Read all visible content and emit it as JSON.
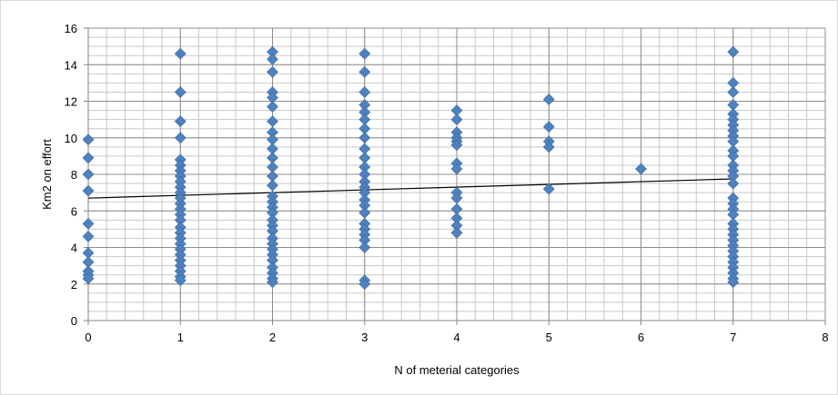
{
  "chart_data": {
    "type": "scatter",
    "title": "",
    "xlabel": "N of meterial categories",
    "ylabel": "Km2 on effort",
    "xlim": [
      0,
      8
    ],
    "ylim": [
      0,
      16
    ],
    "x_ticks": [
      0,
      1,
      2,
      3,
      4,
      5,
      6,
      7,
      8
    ],
    "y_ticks": [
      0,
      2,
      4,
      6,
      8,
      10,
      12,
      14,
      16
    ],
    "grid": "on (major and minor)",
    "legend": "none",
    "marker": "diamond",
    "marker_color": "#4f81bd",
    "trendline": {
      "type": "linear",
      "x": [
        0,
        7
      ],
      "y": [
        6.7,
        7.75
      ],
      "color": "#000000"
    },
    "series": [
      {
        "points": [
          [
            0,
            9.9
          ],
          [
            0,
            8.9
          ],
          [
            0,
            8.0
          ],
          [
            0,
            7.1
          ],
          [
            0,
            5.3
          ],
          [
            0,
            4.6
          ],
          [
            0,
            3.7
          ],
          [
            0,
            3.2
          ],
          [
            0,
            2.7
          ],
          [
            0,
            2.5
          ],
          [
            0,
            2.3
          ],
          [
            1,
            14.6
          ],
          [
            1,
            12.5
          ],
          [
            1,
            10.9
          ],
          [
            1,
            10.0
          ],
          [
            1,
            8.8
          ],
          [
            1,
            8.5
          ],
          [
            1,
            8.2
          ],
          [
            1,
            7.9
          ],
          [
            1,
            7.6
          ],
          [
            1,
            7.3
          ],
          [
            1,
            7.0
          ],
          [
            1,
            6.7
          ],
          [
            1,
            6.4
          ],
          [
            1,
            6.1
          ],
          [
            1,
            5.8
          ],
          [
            1,
            5.5
          ],
          [
            1,
            5.1
          ],
          [
            1,
            4.8
          ],
          [
            1,
            4.5
          ],
          [
            1,
            4.2
          ],
          [
            1,
            3.9
          ],
          [
            1,
            3.6
          ],
          [
            1,
            3.3
          ],
          [
            1,
            3.0
          ],
          [
            1,
            2.7
          ],
          [
            1,
            2.4
          ],
          [
            1,
            2.2
          ],
          [
            2,
            14.7
          ],
          [
            2,
            14.3
          ],
          [
            2,
            13.6
          ],
          [
            2,
            12.5
          ],
          [
            2,
            12.2
          ],
          [
            2,
            11.7
          ],
          [
            2,
            10.9
          ],
          [
            2,
            10.3
          ],
          [
            2,
            9.9
          ],
          [
            2,
            9.4
          ],
          [
            2,
            8.9
          ],
          [
            2,
            8.4
          ],
          [
            2,
            7.9
          ],
          [
            2,
            7.4
          ],
          [
            2,
            6.8
          ],
          [
            2,
            6.5
          ],
          [
            2,
            6.2
          ],
          [
            2,
            5.9
          ],
          [
            2,
            5.5
          ],
          [
            2,
            5.2
          ],
          [
            2,
            4.9
          ],
          [
            2,
            4.5
          ],
          [
            2,
            4.2
          ],
          [
            2,
            3.9
          ],
          [
            2,
            3.6
          ],
          [
            2,
            3.3
          ],
          [
            2,
            2.9
          ],
          [
            2,
            2.6
          ],
          [
            2,
            2.3
          ],
          [
            2,
            2.1
          ],
          [
            3,
            14.6
          ],
          [
            3,
            13.6
          ],
          [
            3,
            12.5
          ],
          [
            3,
            11.8
          ],
          [
            3,
            11.4
          ],
          [
            3,
            11.0
          ],
          [
            3,
            10.5
          ],
          [
            3,
            10.0
          ],
          [
            3,
            9.4
          ],
          [
            3,
            8.9
          ],
          [
            3,
            8.4
          ],
          [
            3,
            8.0
          ],
          [
            3,
            7.6
          ],
          [
            3,
            7.3
          ],
          [
            3,
            7.0
          ],
          [
            3,
            6.6
          ],
          [
            3,
            6.3
          ],
          [
            3,
            5.9
          ],
          [
            3,
            5.3
          ],
          [
            3,
            5.0
          ],
          [
            3,
            4.7
          ],
          [
            3,
            4.4
          ],
          [
            3,
            4.0
          ],
          [
            3,
            2.2
          ],
          [
            3,
            2.0
          ],
          [
            4,
            11.5
          ],
          [
            4,
            11.0
          ],
          [
            4,
            10.3
          ],
          [
            4,
            10.0
          ],
          [
            4,
            9.8
          ],
          [
            4,
            9.6
          ],
          [
            4,
            8.6
          ],
          [
            4,
            8.3
          ],
          [
            4,
            7.0
          ],
          [
            4,
            6.7
          ],
          [
            4,
            6.1
          ],
          [
            4,
            5.6
          ],
          [
            4,
            5.2
          ],
          [
            4,
            4.8
          ],
          [
            5,
            12.1
          ],
          [
            5,
            10.6
          ],
          [
            5,
            9.8
          ],
          [
            5,
            9.5
          ],
          [
            5,
            7.2
          ],
          [
            6,
            8.3
          ],
          [
            7,
            14.7
          ],
          [
            7,
            13.0
          ],
          [
            7,
            12.5
          ],
          [
            7,
            11.8
          ],
          [
            7,
            11.3
          ],
          [
            7,
            11.0
          ],
          [
            7,
            10.7
          ],
          [
            7,
            10.4
          ],
          [
            7,
            10.1
          ],
          [
            7,
            9.8
          ],
          [
            7,
            9.3
          ],
          [
            7,
            9.0
          ],
          [
            7,
            8.5
          ],
          [
            7,
            8.2
          ],
          [
            7,
            7.9
          ],
          [
            7,
            7.5
          ],
          [
            7,
            6.7
          ],
          [
            7,
            6.4
          ],
          [
            7,
            6.1
          ],
          [
            7,
            5.8
          ],
          [
            7,
            5.3
          ],
          [
            7,
            5.0
          ],
          [
            7,
            4.7
          ],
          [
            7,
            4.4
          ],
          [
            7,
            4.1
          ],
          [
            7,
            3.8
          ],
          [
            7,
            3.5
          ],
          [
            7,
            3.2
          ],
          [
            7,
            2.9
          ],
          [
            7,
            2.6
          ],
          [
            7,
            2.3
          ],
          [
            7,
            2.1
          ]
        ]
      }
    ]
  }
}
